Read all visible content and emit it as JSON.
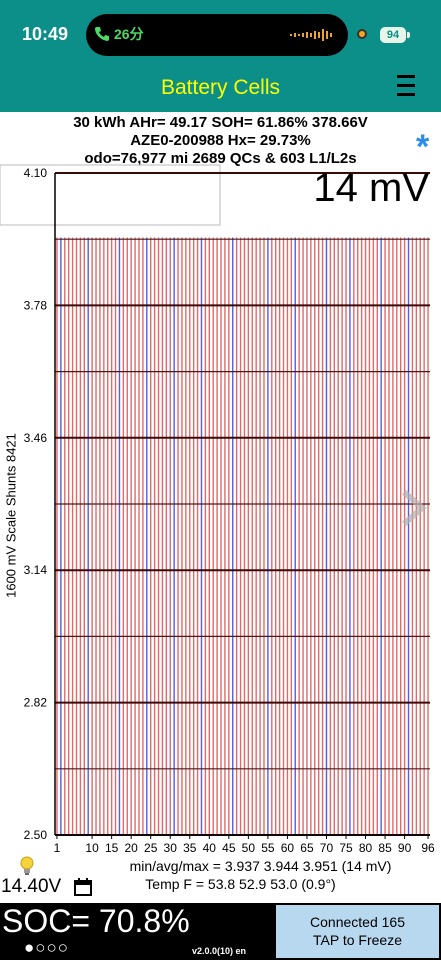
{
  "status_bar": {
    "time": "10:49",
    "call_duration": "26分",
    "battery": "94"
  },
  "app": {
    "title": "Battery Cells"
  },
  "pack_info": {
    "line1": "30 kWh  AHr= 49.17  SOH= 61.86%   378.66V",
    "line2": "AZE0-200988   Hx= 29.73%",
    "line3": "odo=76,977 mi 2689 QCs & 603 L1/L2s",
    "mv_spread": "14 mV"
  },
  "y_axis_label": "1600 mV Scale   Shunts 8421",
  "chart_data": {
    "type": "bar",
    "cell_count": 96,
    "y_ticks": [
      "4.10",
      "3.78",
      "3.46",
      "3.14",
      "2.82",
      "2.50"
    ],
    "ylim": [
      2.5,
      4.1
    ],
    "x_ticks": [
      "1",
      "10",
      "15",
      "20",
      "25",
      "30",
      "35",
      "40",
      "45",
      "50",
      "55",
      "60",
      "65",
      "70",
      "75",
      "80",
      "85",
      "90",
      "96"
    ],
    "min_voltage": 3.937,
    "avg_voltage": 3.944,
    "max_voltage": 3.951,
    "series_colors": {
      "normal": "#e06a6a",
      "shunt": "#5a5ae6"
    },
    "shunt_cells": [
      2,
      9,
      17,
      24,
      31,
      38,
      46,
      55,
      62,
      70,
      76,
      84,
      91
    ]
  },
  "footer": {
    "minmax": "min/avg/max = 3.937 3.944 3.951  (14 mV)",
    "temp": "Temp F = 53.8  52.9  53.0  (0.9°)",
    "voltage_12v": "14.40V"
  },
  "bottom": {
    "soc": "SOC= 70.8%",
    "dots": "●○○○",
    "version": "v2.0.0(10) en",
    "connected_line1": "Connected 165",
    "connected_line2": "TAP to Freeze"
  }
}
